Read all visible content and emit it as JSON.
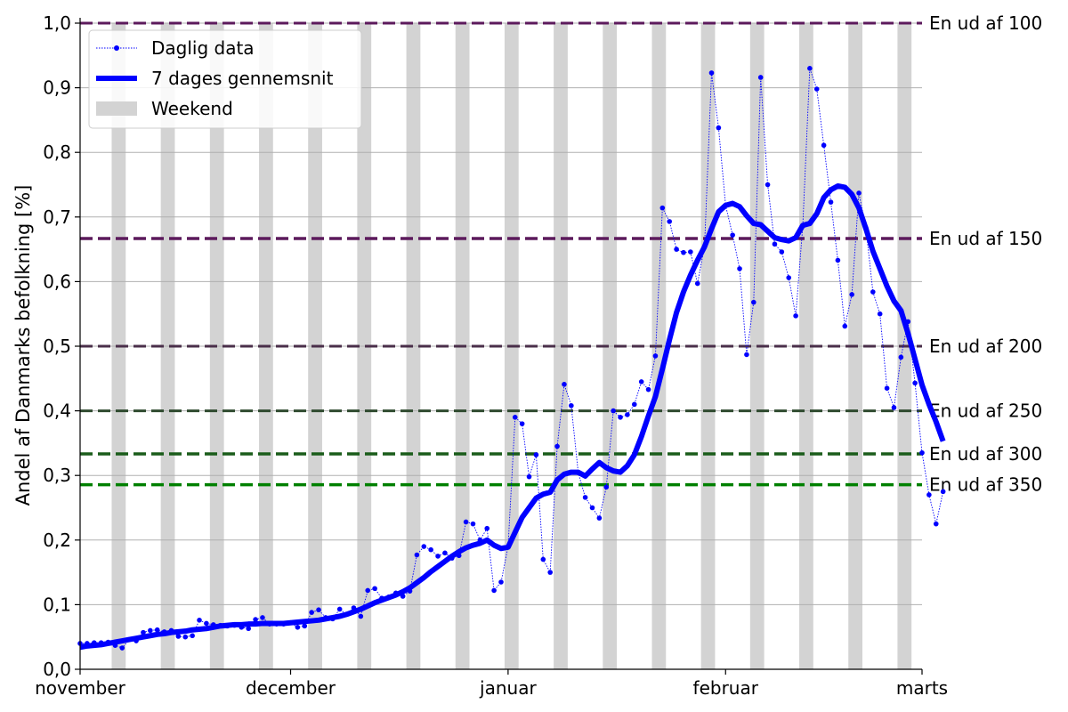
{
  "chart_data": {
    "type": "line",
    "xlabel": "",
    "ylabel": "Andel af Danmarks befolkning [%]",
    "x_ticks": [
      "november",
      "december",
      "januar",
      "februar",
      "marts"
    ],
    "x_tick_days": [
      0,
      30,
      61,
      92,
      120
    ],
    "x_range_days": [
      0,
      120
    ],
    "ylim": [
      0,
      1.0
    ],
    "y_ticks": [
      0.0,
      0.1,
      0.2,
      0.3,
      0.4,
      0.5,
      0.6,
      0.7,
      0.8,
      0.9,
      1.0
    ],
    "y_tick_labels": [
      "0,0",
      "0,1",
      "0,2",
      "0,3",
      "0,4",
      "0,5",
      "0,6",
      "0,7",
      "0,8",
      "0,9",
      "1,0"
    ],
    "grid": "horizontal",
    "legend": {
      "placement": "top-left",
      "entries": [
        {
          "label": "Daglig data",
          "style": "dotted-marker",
          "color": "#0000ff"
        },
        {
          "label": "7 dages gennemsnit",
          "style": "thick-line",
          "color": "#0000ff"
        },
        {
          "label": "Weekend",
          "style": "patch",
          "color": "#d3d3d3"
        }
      ]
    },
    "weekend_start_days": [
      4.5,
      11.5,
      18.5,
      25.5,
      32.5,
      39.5,
      46.5,
      53.5,
      60.5,
      67.5,
      74.5,
      81.5,
      88.5,
      95.5,
      102.5,
      109.5,
      116.5
    ],
    "weekend_width_days": 2,
    "reference_lines": [
      {
        "label": "En ud af 100",
        "value": 1.0,
        "color": "#5c1a5c",
        "width": 3
      },
      {
        "label": "En ud af 150",
        "value": 0.6667,
        "color": "#5c1a5c",
        "width": 3.5
      },
      {
        "label": "En ud af 200",
        "value": 0.5,
        "color": "#4a2f4a",
        "width": 3
      },
      {
        "label": "En ud af 250",
        "value": 0.4,
        "color": "#2f4a2f",
        "width": 3
      },
      {
        "label": "En ud af 300",
        "value": 0.3333,
        "color": "#1a5c1a",
        "width": 3.5
      },
      {
        "label": "En ud af 350",
        "value": 0.2857,
        "color": "#008000",
        "width": 3.5
      }
    ],
    "series": [
      {
        "name": "Daglig data",
        "color": "#0000ff",
        "x_start_day": 0,
        "values": [
          0.04,
          0.04,
          0.041,
          0.041,
          0.042,
          0.037,
          0.033,
          0.046,
          0.044,
          0.057,
          0.06,
          0.061,
          0.058,
          0.06,
          0.051,
          0.05,
          0.052,
          0.076,
          0.071,
          0.069,
          0.068,
          0.067,
          0.068,
          0.065,
          0.063,
          0.077,
          0.08,
          0.07,
          0.07,
          0.07,
          0.072,
          0.065,
          0.067,
          0.088,
          0.092,
          0.08,
          0.078,
          0.093,
          0.085,
          0.095,
          0.082,
          0.122,
          0.125,
          0.11,
          0.112,
          0.118,
          0.113,
          0.121,
          0.177,
          0.19,
          0.185,
          0.175,
          0.18,
          0.172,
          0.176,
          0.228,
          0.225,
          0.2,
          0.218,
          0.122,
          0.135,
          0.19,
          0.39,
          0.38,
          0.298,
          0.332,
          0.17,
          0.15,
          0.345,
          0.441,
          0.408,
          0.304,
          0.266,
          0.25,
          0.234,
          0.282,
          0.4,
          0.39,
          0.394,
          0.41,
          0.445,
          0.433,
          0.485,
          0.714,
          0.693,
          0.65,
          0.645,
          0.646,
          0.597,
          0.655,
          0.923,
          0.838,
          0.718,
          0.672,
          0.62,
          0.487,
          0.568,
          0.916,
          0.75,
          0.658,
          0.646,
          0.606,
          0.547,
          0.686,
          0.93,
          0.898,
          0.811,
          0.723,
          0.633,
          0.531,
          0.58,
          0.737,
          0.683,
          0.584,
          0.55,
          0.435,
          0.405,
          0.483,
          0.538,
          0.443,
          0.335,
          0.27,
          0.225,
          0.275
        ]
      },
      {
        "name": "7 dages gennemsnit",
        "color": "#0000ff",
        "x_start_day": 0,
        "values": [
          0.034,
          0.036,
          0.037,
          0.038,
          0.04,
          0.042,
          0.044,
          0.046,
          0.048,
          0.05,
          0.052,
          0.054,
          0.055,
          0.057,
          0.058,
          0.059,
          0.061,
          0.062,
          0.063,
          0.065,
          0.067,
          0.068,
          0.069,
          0.069,
          0.07,
          0.07,
          0.071,
          0.071,
          0.071,
          0.071,
          0.072,
          0.073,
          0.074,
          0.075,
          0.076,
          0.078,
          0.08,
          0.082,
          0.085,
          0.089,
          0.093,
          0.098,
          0.103,
          0.107,
          0.111,
          0.115,
          0.12,
          0.126,
          0.134,
          0.142,
          0.151,
          0.159,
          0.167,
          0.175,
          0.182,
          0.188,
          0.192,
          0.195,
          0.2,
          0.192,
          0.187,
          0.189,
          0.212,
          0.235,
          0.25,
          0.265,
          0.271,
          0.274,
          0.293,
          0.302,
          0.305,
          0.305,
          0.299,
          0.31,
          0.32,
          0.312,
          0.307,
          0.305,
          0.315,
          0.332,
          0.36,
          0.392,
          0.422,
          0.465,
          0.51,
          0.552,
          0.584,
          0.61,
          0.633,
          0.654,
          0.682,
          0.708,
          0.718,
          0.721,
          0.716,
          0.702,
          0.69,
          0.688,
          0.678,
          0.668,
          0.665,
          0.663,
          0.668,
          0.687,
          0.69,
          0.705,
          0.73,
          0.742,
          0.748,
          0.746,
          0.735,
          0.714,
          0.682,
          0.647,
          0.62,
          0.593,
          0.57,
          0.555,
          0.52,
          0.48,
          0.44,
          0.41,
          0.383,
          0.353
        ]
      }
    ]
  }
}
